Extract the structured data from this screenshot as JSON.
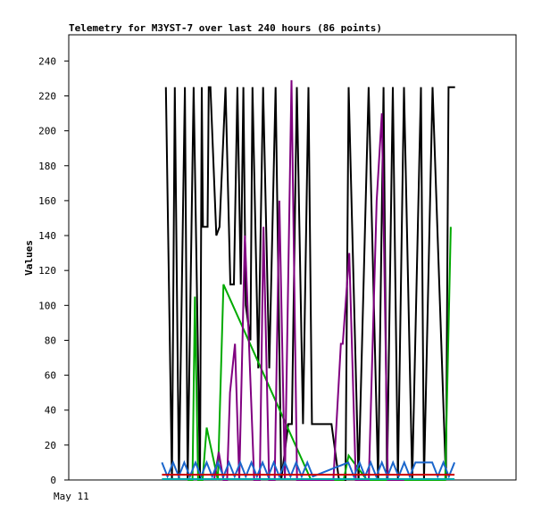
{
  "chart_data": {
    "type": "line",
    "title": "Telemetry for M3YST-7 over last 240 hours (86 points)",
    "xlabel": "",
    "ylabel": "Values",
    "x_tick_labels": [
      "May 11"
    ],
    "y_ticks": [
      0,
      20,
      40,
      60,
      80,
      100,
      120,
      140,
      160,
      180,
      200,
      220,
      240
    ],
    "ylim": [
      0,
      255
    ],
    "grid": false,
    "legend": "none",
    "x_unit": "hours",
    "xlim": [
      0,
      240
    ],
    "series": [
      {
        "color": "#000000",
        "x": [
          52.1,
          55.4,
          56.9,
          59.1,
          62.3,
          63.8,
          67.0,
          70.4,
          71.4,
          72.0,
          74.5,
          75.1,
          76.0,
          79.2,
          80.9,
          84.1,
          86.7,
          88.6,
          90.5,
          92.3,
          93.7,
          95.0,
          97.5,
          98.6,
          101.7,
          104.3,
          107.6,
          111.0,
          114.0,
          117.8,
          119.7,
          122.4,
          125.7,
          128.6,
          130.5,
          133.4,
          141.0,
          145.0,
          148.5,
          150.2,
          155.5,
          160.9,
          166.0,
          168.9,
          170.8,
          173.9,
          176.6,
          179.9,
          184.3,
          189.0,
          190.6,
          195.2,
          202.4,
          203.8,
          207.3
        ],
        "y": [
          225,
          0,
          225,
          0,
          225,
          0,
          225,
          0,
          225,
          145,
          145,
          225,
          225,
          140,
          145,
          225,
          112,
          112,
          225,
          112,
          225,
          100,
          80,
          225,
          64,
          225,
          64,
          225,
          0,
          32,
          32,
          225,
          32,
          225,
          32,
          32,
          32,
          0,
          0,
          225,
          0,
          225,
          0,
          225,
          0,
          225,
          0,
          225,
          0,
          225,
          0,
          225,
          0,
          225,
          225
        ]
      },
      {
        "color": "#00aa00",
        "x": [
          63.8,
          66.4,
          67.7,
          69.4,
          71.8,
          74.0,
          80.0,
          83.0,
          130.0,
          144.5,
          147.5,
          150.2,
          160.0,
          164.0,
          166.0,
          169.0,
          195.0,
          199.3,
          202.0,
          205.0
        ],
        "y": [
          0,
          0,
          105,
          0,
          0,
          30,
          0,
          112,
          0,
          0,
          0,
          14,
          0,
          0,
          0,
          0,
          0,
          0,
          0,
          145
        ]
      },
      {
        "color": "#800080",
        "x": [
          78.0,
          80.5,
          83.0,
          85.0,
          86.5,
          89.2,
          91.5,
          94.5,
          99.5,
          102.5,
          104.5,
          107.5,
          110.5,
          113.0,
          116.0,
          119.5,
          122.5,
          128.0,
          134.0,
          139.0,
          142.0,
          146.0,
          147.0,
          150.5,
          154.0,
          157.0,
          159.5,
          161.0,
          165.2,
          168.0,
          171.2,
          177.0,
          180.0
        ],
        "y": [
          0,
          16,
          0,
          0,
          50,
          78,
          0,
          140,
          0,
          0,
          145,
          0,
          0,
          160,
          0,
          229,
          0,
          0,
          0,
          0,
          0,
          78,
          78,
          130,
          0,
          0,
          0,
          0,
          160,
          210,
          0,
          0,
          0
        ]
      },
      {
        "color": "#1a66cc",
        "x": [
          50.0,
          53.0,
          56.0,
          59.0,
          62.0,
          65.0,
          68.0,
          71.0,
          74.0,
          77.0,
          80.0,
          83.0,
          86.0,
          89.0,
          92.0,
          95.0,
          98.0,
          101.0,
          104.0,
          107.0,
          110.0,
          113.0,
          116.0,
          119.0,
          122.0,
          125.0,
          128.0,
          131.0,
          150.0,
          153.0,
          156.0,
          159.0,
          162.0,
          165.0,
          168.0,
          171.0,
          174.0,
          177.0,
          180.0,
          183.0,
          186.0,
          195.0,
          198.0,
          201.0,
          204.0,
          207.0
        ],
        "y": [
          10,
          2,
          10,
          2,
          10,
          2,
          10,
          2,
          10,
          2,
          10,
          2,
          10,
          2,
          10,
          2,
          10,
          2,
          10,
          2,
          10,
          2,
          10,
          2,
          10,
          2,
          10,
          2,
          10,
          2,
          10,
          2,
          10,
          2,
          10,
          2,
          10,
          2,
          10,
          2,
          10,
          10,
          2,
          10,
          2,
          10
        ]
      },
      {
        "color": "#cc0000",
        "x": [
          50.0,
          70.0,
          100.0,
          130.0,
          160.0,
          190.0,
          207.0
        ],
        "y": [
          3,
          3,
          3,
          3,
          3,
          3,
          3
        ]
      },
      {
        "color": "#00aaaa",
        "x": [
          50.0,
          207.0
        ],
        "y": [
          0.5,
          0.5
        ]
      }
    ]
  }
}
